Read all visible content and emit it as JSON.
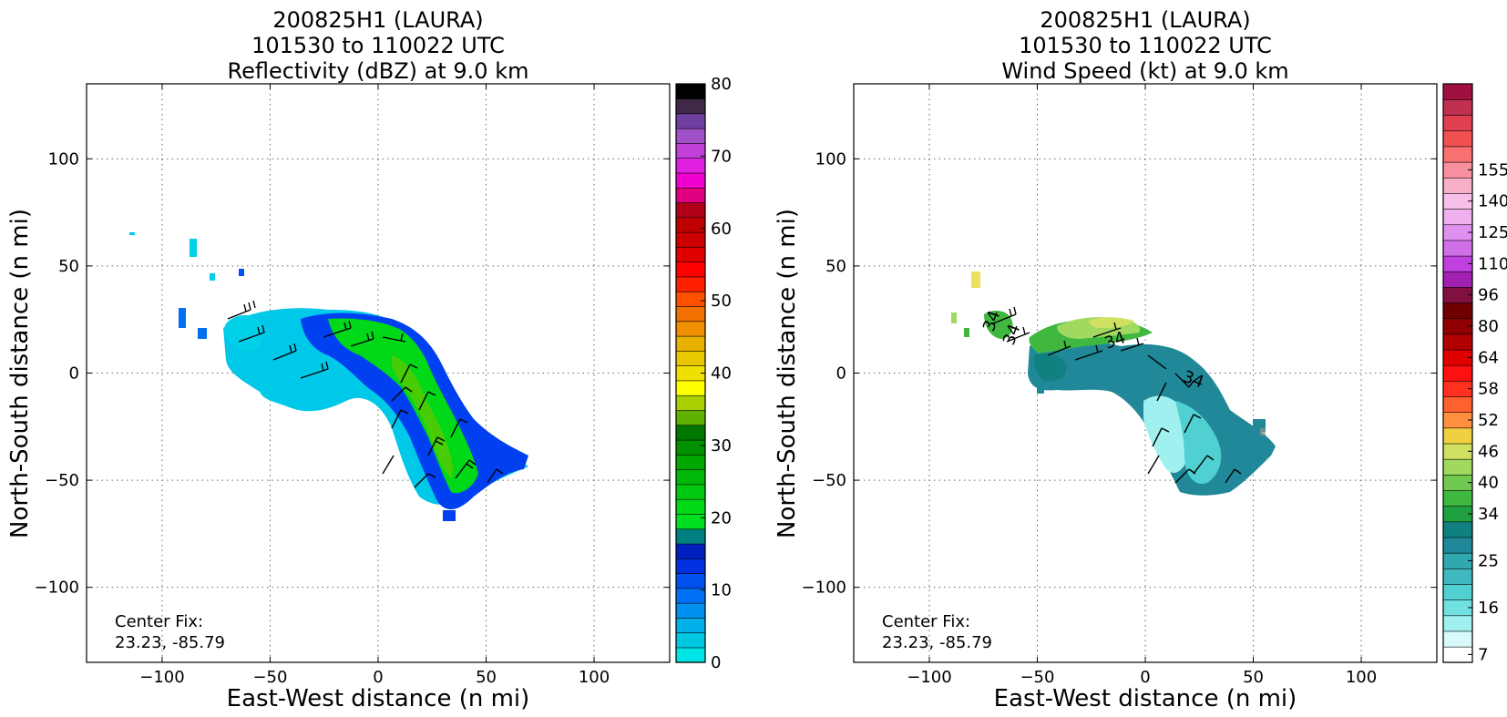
{
  "chart_data": [
    {
      "type": "heatmap",
      "title": [
        "200825H1 (LAURA)",
        "101530 to 110022 UTC",
        "Reflectivity (dBZ) at 9.0 km"
      ],
      "xlabel": "East-West distance (n mi)",
      "ylabel": "North-South distance (n mi)",
      "xlim": [
        -135,
        135
      ],
      "ylim": [
        -135,
        135
      ],
      "xticks": [
        -100,
        -50,
        0,
        50,
        100
      ],
      "yticks": [
        -100,
        -50,
        0,
        50,
        100
      ],
      "x_tick_labels": [
        "−100",
        "−50",
        "0",
        "50",
        "100"
      ],
      "y_tick_labels": [
        "−100",
        "−50",
        "0",
        "50",
        "100"
      ],
      "grid": true,
      "annotation": [
        "Center Fix:",
        "23.23, -85.79"
      ],
      "colorbar": {
        "range": [
          0,
          80
        ],
        "tick_values": [
          0,
          10,
          20,
          30,
          40,
          50,
          60,
          70,
          80
        ],
        "tick_labels": [
          "0",
          "10",
          "20",
          "30",
          "40",
          "50",
          "60",
          "70",
          "80"
        ],
        "colors": [
          "#00e5e5",
          "#00c8e0",
          "#00b0e8",
          "#0090f0",
          "#0070f5",
          "#0050f0",
          "#0030e0",
          "#0020c0",
          "#008080",
          "#00e020",
          "#00d818",
          "#00c810",
          "#00b808",
          "#00a800",
          "#009000",
          "#007800",
          "#60b000",
          "#a8d000",
          "#ffff00",
          "#f0e000",
          "#e8c800",
          "#e8b000",
          "#f09000",
          "#f07000",
          "#ff5000",
          "#ff2000",
          "#ff0000",
          "#e00000",
          "#cc0000",
          "#c00000",
          "#b00018",
          "#e00080",
          "#f000d0",
          "#e020e0",
          "#c040d8",
          "#a050c8",
          "#7040a0",
          "#402848",
          "#000000"
        ]
      },
      "field": [
        {
          "x": -20,
          "y": 5,
          "value": 10
        },
        {
          "x": 25,
          "y": -25,
          "value": 20
        },
        {
          "x": 0,
          "y": 15,
          "value": 22
        },
        {
          "x": -40,
          "y": 10,
          "value": 3
        },
        {
          "x": 45,
          "y": -40,
          "value": 12
        }
      ]
    },
    {
      "type": "heatmap",
      "title": [
        "200825H1 (LAURA)",
        "101530 to 110022 UTC",
        "Wind Speed (kt) at 9.0 km"
      ],
      "xlabel": "East-West distance (n mi)",
      "ylabel": "North-South distance (n mi)",
      "xlim": [
        -135,
        135
      ],
      "ylim": [
        -135,
        135
      ],
      "xticks": [
        -100,
        -50,
        0,
        50,
        100
      ],
      "yticks": [
        -100,
        -50,
        0,
        50,
        100
      ],
      "x_tick_labels": [
        "−100",
        "−50",
        "0",
        "50",
        "100"
      ],
      "y_tick_labels": [
        "−100",
        "−50",
        "0",
        "50",
        "100"
      ],
      "grid": true,
      "annotation": [
        "Center Fix:",
        "23.23, -85.79"
      ],
      "contour_labels": [
        "34",
        "34",
        "34",
        "34"
      ],
      "colorbar": {
        "tick_labels": [
          "7",
          "16",
          "25",
          "34",
          "40",
          "46",
          "52",
          "58",
          "64",
          "80",
          "96",
          "110",
          "125",
          "140",
          "155"
        ],
        "tick_bins": [
          0,
          3,
          6,
          9,
          11,
          13,
          15,
          17,
          19,
          21,
          23,
          25,
          27,
          29,
          31
        ],
        "colors": [
          "#ffffff",
          "#d8fafa",
          "#a0f0f0",
          "#70e0e0",
          "#50d0d0",
          "#40b8c0",
          "#30a8b0",
          "#208898",
          "#108080",
          "#20a040",
          "#40b840",
          "#70c850",
          "#a0d860",
          "#d0e060",
          "#f0d040",
          "#ff9040",
          "#ff6030",
          "#ff3020",
          "#ff1010",
          "#e00000",
          "#b00000",
          "#900000",
          "#700000",
          "#801040",
          "#a020b0",
          "#c040e0",
          "#d070e8",
          "#e090f0",
          "#f0b0f0",
          "#f8c0e8",
          "#f8b0c8",
          "#f890a0",
          "#f87070",
          "#f05050",
          "#e04050",
          "#c03050",
          "#a01040"
        ]
      },
      "field": [
        {
          "x": -20,
          "y": 15,
          "value": 42
        },
        {
          "x": 10,
          "y": 0,
          "value": 28
        },
        {
          "x": 25,
          "y": -25,
          "value": 20
        },
        {
          "x": -45,
          "y": 5,
          "value": 26
        },
        {
          "x": 45,
          "y": -30,
          "value": 30
        }
      ]
    }
  ]
}
